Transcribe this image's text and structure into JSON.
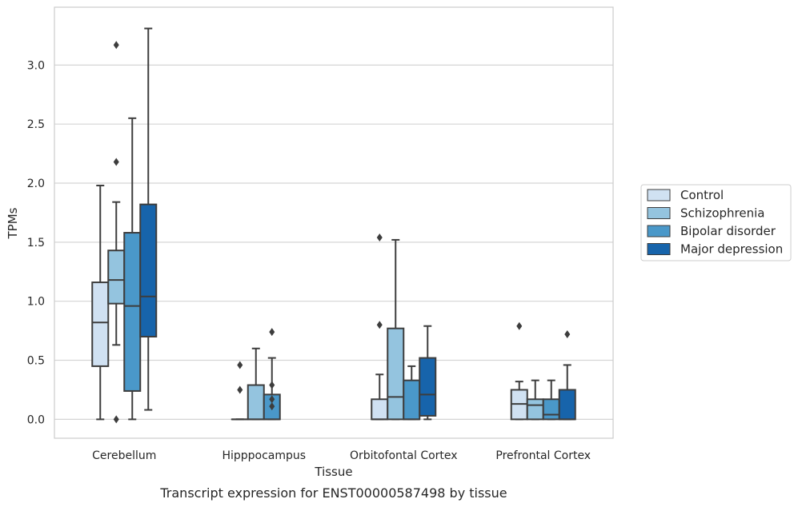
{
  "caption": "Transcript expression for ENST00000587498 by tissue",
  "chart_data": {
    "type": "box",
    "xlabel": "Tissue",
    "ylabel": "TPMs",
    "ylim": [
      -0.16,
      3.49
    ],
    "yticks": [
      "0.0",
      "0.5",
      "1.0",
      "1.5",
      "2.0",
      "2.5",
      "3.0"
    ],
    "ytick_values": [
      0,
      0.5,
      1.0,
      1.5,
      2.0,
      2.5,
      3.0
    ],
    "grid": "horizontal",
    "legend_position": "right",
    "categories": [
      "Cerebellum",
      "Hipppocampus",
      "Orbitofontal Cortex",
      "Prefrontal Cortex"
    ],
    "series": [
      {
        "name": "Control",
        "color": "#d0e1f2",
        "boxes": [
          {
            "whisker_low": 0.0,
            "q1": 0.45,
            "median": 0.82,
            "q3": 1.16,
            "whisker_high": 1.98,
            "outliers": []
          },
          {
            "whisker_low": 0.0,
            "q1": 0.0,
            "median": 0.0,
            "q3": 0.0,
            "whisker_high": 0.0,
            "outliers": [
              0.25,
              0.46
            ]
          },
          {
            "whisker_low": 0.0,
            "q1": 0.0,
            "median": 0.0,
            "q3": 0.17,
            "whisker_high": 0.38,
            "outliers": [
              0.8,
              1.54
            ]
          },
          {
            "whisker_low": 0.0,
            "q1": 0.0,
            "median": 0.13,
            "q3": 0.25,
            "whisker_high": 0.32,
            "outliers": [
              0.79
            ]
          }
        ]
      },
      {
        "name": "Schizophrenia",
        "color": "#94c4df",
        "boxes": [
          {
            "whisker_low": 0.63,
            "q1": 0.98,
            "median": 1.18,
            "q3": 1.43,
            "whisker_high": 1.84,
            "outliers": [
              0.0,
              2.18,
              3.17
            ]
          },
          {
            "whisker_low": 0.0,
            "q1": 0.0,
            "median": 0.0,
            "q3": 0.29,
            "whisker_high": 0.6,
            "outliers": []
          },
          {
            "whisker_low": 0.0,
            "q1": 0.0,
            "median": 0.19,
            "q3": 0.77,
            "whisker_high": 1.52,
            "outliers": []
          },
          {
            "whisker_low": 0.0,
            "q1": 0.0,
            "median": 0.12,
            "q3": 0.17,
            "whisker_high": 0.33,
            "outliers": []
          }
        ]
      },
      {
        "name": "Bipolar disorder",
        "color": "#4a98c9",
        "boxes": [
          {
            "whisker_low": 0.0,
            "q1": 0.24,
            "median": 0.96,
            "q3": 1.58,
            "whisker_high": 2.55,
            "outliers": []
          },
          {
            "whisker_low": 0.0,
            "q1": 0.0,
            "median": 0.0,
            "q3": 0.21,
            "whisker_high": 0.52,
            "outliers": [
              0.11,
              0.17,
              0.29,
              0.74
            ]
          },
          {
            "whisker_low": 0.0,
            "q1": 0.0,
            "median": 0.0,
            "q3": 0.33,
            "whisker_high": 0.45,
            "outliers": []
          },
          {
            "whisker_low": 0.0,
            "q1": 0.0,
            "median": 0.04,
            "q3": 0.17,
            "whisker_high": 0.33,
            "outliers": []
          }
        ]
      },
      {
        "name": "Major depression",
        "color": "#1764ab",
        "boxes": [
          {
            "whisker_low": 0.08,
            "q1": 0.7,
            "median": 1.04,
            "q3": 1.82,
            "whisker_high": 3.31,
            "outliers": []
          },
          null,
          {
            "whisker_low": 0.0,
            "q1": 0.03,
            "median": 0.21,
            "q3": 0.52,
            "whisker_high": 0.79,
            "outliers": []
          },
          {
            "whisker_low": 0.0,
            "q1": 0.0,
            "median": 0.0,
            "q3": 0.25,
            "whisker_high": 0.46,
            "outliers": [
              0.72
            ]
          }
        ]
      }
    ]
  }
}
